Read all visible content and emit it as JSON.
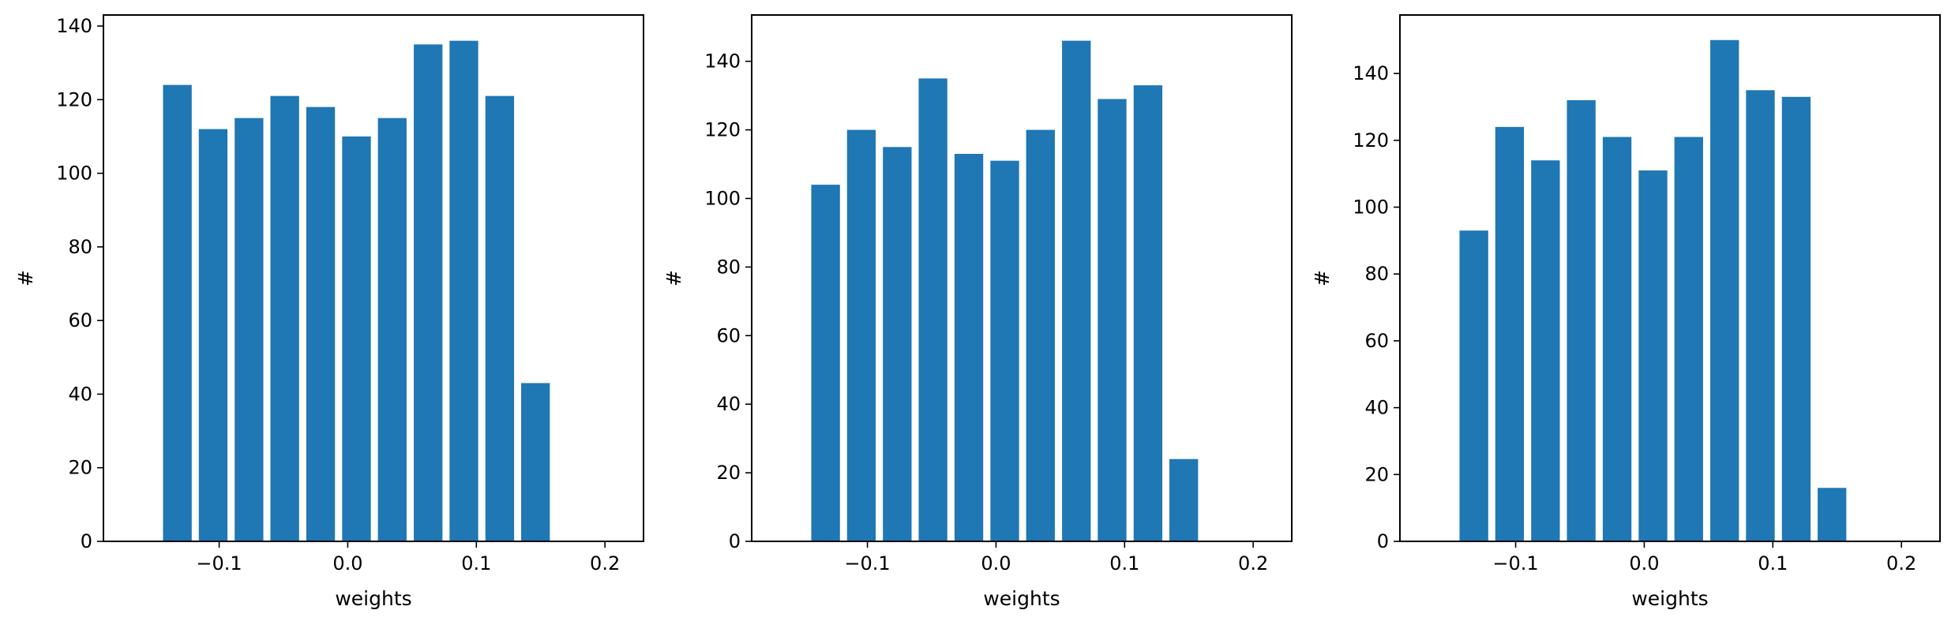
{
  "chart_data": [
    {
      "type": "bar",
      "x": [
        -0.1325,
        -0.1047,
        -0.0768,
        -0.049,
        -0.0211,
        0.0068,
        0.0346,
        0.0625,
        0.0903,
        0.1182,
        0.146
      ],
      "values": [
        124,
        112,
        115,
        121,
        118,
        110,
        115,
        135,
        136,
        121,
        43
      ],
      "bar_width": 0.0223,
      "xlabel": "weights",
      "ylabel": "#",
      "xlim": [
        -0.19,
        0.23
      ],
      "ylim": [
        0,
        143
      ],
      "xticks": [
        -0.1,
        0.0,
        0.1,
        0.2
      ],
      "xtick_labels": [
        "−0.1",
        "0.0",
        "0.1",
        "0.2"
      ],
      "yticks": [
        0,
        20,
        40,
        60,
        80,
        100,
        120,
        140
      ],
      "ytick_labels": [
        "0",
        "20",
        "40",
        "60",
        "80",
        "100",
        "120",
        "140"
      ],
      "color": "#1f77b4",
      "grid": false
    },
    {
      "type": "bar",
      "x": [
        -0.1325,
        -0.1047,
        -0.0768,
        -0.049,
        -0.0211,
        0.0068,
        0.0346,
        0.0625,
        0.0903,
        0.1182,
        0.146
      ],
      "values": [
        104,
        120,
        115,
        135,
        113,
        111,
        120,
        146,
        129,
        133,
        24
      ],
      "bar_width": 0.0223,
      "xlabel": "weights",
      "ylabel": "#",
      "xlim": [
        -0.19,
        0.23
      ],
      "ylim": [
        0,
        153.5
      ],
      "xticks": [
        -0.1,
        0.0,
        0.1,
        0.2
      ],
      "xtick_labels": [
        "−0.1",
        "0.0",
        "0.1",
        "0.2"
      ],
      "yticks": [
        0,
        20,
        40,
        60,
        80,
        100,
        120,
        140
      ],
      "ytick_labels": [
        "0",
        "20",
        "40",
        "60",
        "80",
        "100",
        "120",
        "140"
      ],
      "color": "#1f77b4",
      "grid": false
    },
    {
      "type": "bar",
      "x": [
        -0.1325,
        -0.1047,
        -0.0768,
        -0.049,
        -0.0211,
        0.0068,
        0.0346,
        0.0625,
        0.0903,
        0.1182,
        0.146
      ],
      "values": [
        93,
        124,
        114,
        132,
        121,
        111,
        121,
        150,
        135,
        133,
        16
      ],
      "bar_width": 0.0223,
      "xlabel": "weights",
      "ylabel": "#",
      "xlim": [
        -0.19,
        0.23
      ],
      "ylim": [
        0,
        157.5
      ],
      "xticks": [
        -0.1,
        0.0,
        0.1,
        0.2
      ],
      "xtick_labels": [
        "−0.1",
        "0.0",
        "0.1",
        "0.2"
      ],
      "yticks": [
        0,
        20,
        40,
        60,
        80,
        100,
        120,
        140
      ],
      "ytick_labels": [
        "0",
        "20",
        "40",
        "60",
        "80",
        "100",
        "120",
        "140"
      ],
      "color": "#1f77b4",
      "grid": false
    }
  ]
}
